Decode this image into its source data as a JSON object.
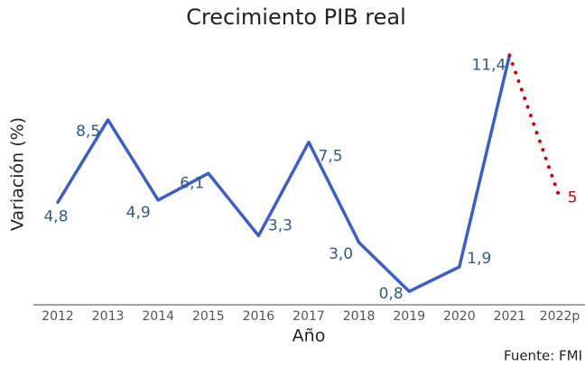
{
  "chart_data": {
    "type": "line",
    "title": "Crecimiento PIB real",
    "x_label": "Año",
    "y_label": "Variación (%)",
    "source": "Fuente: FMI",
    "categories": [
      "2012",
      "2013",
      "2014",
      "2015",
      "2016",
      "2017",
      "2018",
      "2019",
      "2020",
      "2021",
      "2022p"
    ],
    "series": [
      {
        "color": "#3b5ec9",
        "style": "solid",
        "values": [
          4.8,
          8.5,
          4.9,
          6.1,
          3.3,
          7.5,
          3.0,
          0.8,
          1.9,
          11.4,
          null
        ],
        "value_labels": [
          "4,8",
          "8,5",
          "4,9",
          "6,1",
          "3,3",
          "7,5",
          "3,0",
          "0,8",
          "1,9",
          "11,4",
          null
        ],
        "label_color": "#2f5a8a"
      },
      {
        "color": "#d40000",
        "style": "dotted",
        "values": [
          null,
          null,
          null,
          null,
          null,
          null,
          null,
          null,
          null,
          11.4,
          5
        ],
        "value_labels": [
          null,
          null,
          null,
          null,
          null,
          null,
          null,
          null,
          null,
          null,
          "5"
        ],
        "label_color": "#d40000"
      }
    ],
    "ylim": [
      0.2,
      12
    ]
  }
}
